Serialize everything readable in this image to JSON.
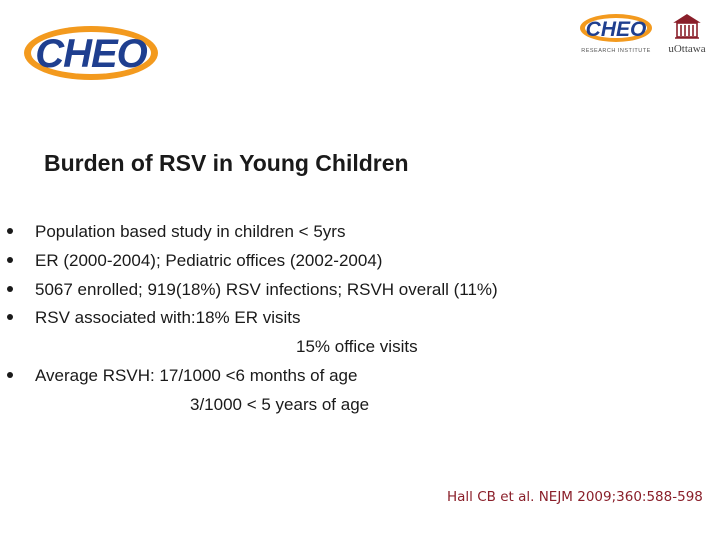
{
  "header": {
    "logo_main_text": "CHEO",
    "logo_research_text": "CHEO",
    "logo_research_subtext": "RESEARCH INSTITUTE",
    "logo_uottawa_text": "uOttawa"
  },
  "slide": {
    "title": "Burden of RSV in Young Children",
    "bullets": [
      {
        "lines": [
          "Population based study in children < 5yrs"
        ]
      },
      {
        "lines": [
          "ER (2000-2004); Pediatric offices (2002-2004)"
        ]
      },
      {
        "lines": [
          "5067 enrolled; 919(18%) RSV infections; RSVH overall (11%)"
        ]
      },
      {
        "lines": [
          "RSV associated with:18% ER visits",
          "15% office visits"
        ]
      },
      {
        "lines": [
          "Average RSVH: 17/1000 <6 months of age",
          "3/1000 < 5 years of age"
        ]
      }
    ],
    "citation": "Hall CB et al. NEJM 2009;360:588-598"
  },
  "colors": {
    "logo_blue": "#1f3f8f",
    "logo_orange": "#f39a1e",
    "text": "#1a1a1a",
    "citation": "#8a1f2a"
  }
}
